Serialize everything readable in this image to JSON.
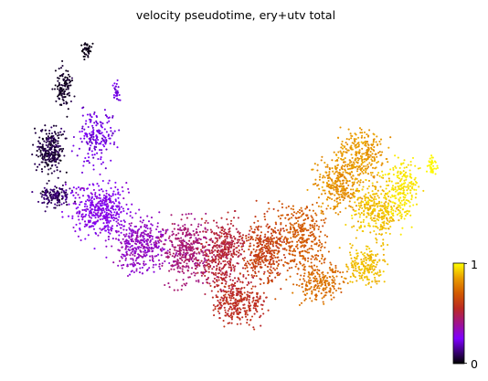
{
  "chart_data": {
    "type": "scatter",
    "title": "velocity pseudotime, ery+utv total",
    "xlabel": "",
    "ylabel": "",
    "axes_visible": false,
    "grid": false,
    "colormap": "gnuplot",
    "colorbar": {
      "placement": "bottom-right",
      "vmin": 0,
      "vmax": 1,
      "ticks": [
        "0",
        "1"
      ]
    },
    "xlim": [
      0,
      1
    ],
    "ylim": [
      0,
      1
    ],
    "color_value": "pseudotime",
    "n_points_approx": 5200,
    "structure": "crescent-shaped embedding; pseudotime increases from the upper-left tip (0) along the lower arc to the right lobe (1)",
    "series": [
      {
        "name": "",
        "points_along_trajectory": [
          {
            "x": 0.1,
            "y": 0.97,
            "pseudotime": 0.0
          },
          {
            "x": 0.06,
            "y": 0.72,
            "pseudotime": 0.04
          },
          {
            "x": 0.05,
            "y": 0.57,
            "pseudotime": 0.06
          },
          {
            "x": 0.12,
            "y": 0.5,
            "pseudotime": 0.25
          },
          {
            "x": 0.2,
            "y": 0.38,
            "pseudotime": 0.33
          },
          {
            "x": 0.3,
            "y": 0.25,
            "pseudotime": 0.42
          },
          {
            "x": 0.42,
            "y": 0.18,
            "pseudotime": 0.55
          },
          {
            "x": 0.52,
            "y": 0.2,
            "pseudotime": 0.62
          },
          {
            "x": 0.62,
            "y": 0.26,
            "pseudotime": 0.72
          },
          {
            "x": 0.72,
            "y": 0.33,
            "pseudotime": 0.85
          },
          {
            "x": 0.82,
            "y": 0.5,
            "pseudotime": 0.94
          },
          {
            "x": 0.78,
            "y": 0.72,
            "pseudotime": 0.9
          },
          {
            "x": 0.96,
            "y": 0.62,
            "pseudotime": 0.99
          }
        ]
      }
    ]
  }
}
